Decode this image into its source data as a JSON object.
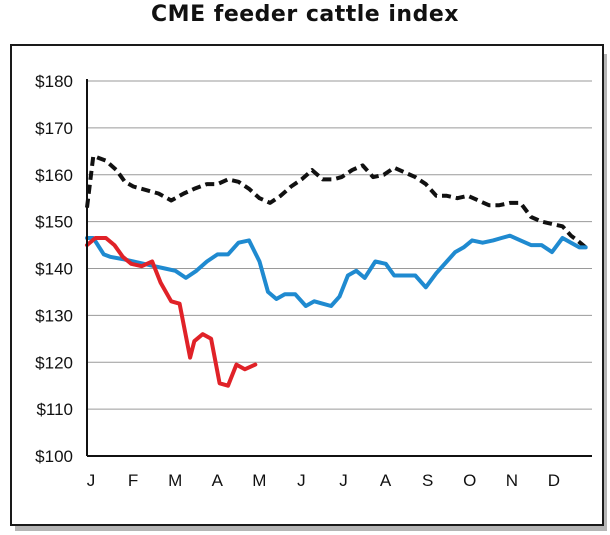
{
  "chart_data": {
    "type": "line",
    "title": "CME feeder cattle index",
    "xlabel": "",
    "ylabel": "",
    "categories": [
      "J",
      "F",
      "M",
      "A",
      "M",
      "J",
      "J",
      "A",
      "S",
      "O",
      "N",
      "D"
    ],
    "yticks": [
      "$100",
      "$110",
      "$120",
      "$130",
      "$140",
      "$150",
      "$160",
      "$170",
      "$180"
    ],
    "ylim": [
      100,
      180
    ],
    "xlim": [
      0,
      12
    ],
    "grid": "horizontal",
    "series": [
      {
        "color": "#111111",
        "style": "dashed",
        "x": [
          0.0,
          0.15,
          0.45,
          0.7,
          0.9,
          1.1,
          1.3,
          1.5,
          1.7,
          2.0,
          2.3,
          2.55,
          2.85,
          3.1,
          3.35,
          3.6,
          3.85,
          4.1,
          4.35,
          4.6,
          4.85,
          5.1,
          5.35,
          5.6,
          5.85,
          6.05,
          6.3,
          6.55,
          6.8,
          7.05,
          7.3,
          7.55,
          7.8,
          8.05,
          8.3,
          8.55,
          8.8,
          9.05,
          9.3,
          9.55,
          9.8,
          10.05,
          10.3,
          10.55,
          10.8,
          11.05,
          11.3,
          11.5,
          11.65,
          11.85
        ],
        "values": [
          153,
          164,
          163,
          161,
          158.5,
          157.5,
          157,
          156.5,
          156,
          154.5,
          156,
          157,
          158,
          158,
          159,
          158.5,
          157,
          155,
          154,
          155.5,
          157.5,
          159,
          161,
          159,
          159,
          159.5,
          161,
          162,
          159.5,
          160,
          161.5,
          160.5,
          159.5,
          158,
          155.5,
          155.5,
          155,
          155.5,
          154.5,
          153.5,
          153.5,
          154,
          154,
          151,
          150,
          149.5,
          149,
          147,
          146,
          144.5
        ]
      },
      {
        "color": "#1f8ad0",
        "style": "solid",
        "x": [
          0.0,
          0.15,
          0.4,
          0.55,
          0.85,
          1.1,
          1.35,
          1.6,
          1.85,
          2.1,
          2.35,
          2.6,
          2.85,
          3.1,
          3.35,
          3.6,
          3.85,
          4.1,
          4.3,
          4.5,
          4.7,
          4.95,
          5.2,
          5.4,
          5.6,
          5.8,
          6.0,
          6.2,
          6.4,
          6.6,
          6.85,
          7.1,
          7.3,
          7.55,
          7.8,
          8.05,
          8.3,
          8.55,
          8.75,
          8.95,
          9.15,
          9.4,
          9.65,
          9.85,
          10.05,
          10.3,
          10.55,
          10.8,
          11.05,
          11.3,
          11.5,
          11.7,
          11.85
        ],
        "values": [
          146.5,
          146.5,
          143,
          142.5,
          142,
          141.5,
          141,
          140.5,
          140,
          139.5,
          138,
          139.5,
          141.5,
          143,
          143,
          145.5,
          146,
          141.5,
          135,
          133.5,
          134.5,
          134.5,
          132,
          133,
          132.5,
          132,
          134,
          138.5,
          139.5,
          138,
          141.5,
          141,
          138.5,
          138.5,
          138.5,
          136,
          139,
          141.5,
          143.5,
          144.5,
          146,
          145.5,
          146,
          146.5,
          147,
          146,
          145,
          145,
          143.5,
          146.5,
          145.5,
          144.5,
          144.5
        ]
      },
      {
        "color": "#e02228",
        "style": "solid",
        "x": [
          0.0,
          0.2,
          0.45,
          0.65,
          0.85,
          1.05,
          1.3,
          1.55,
          1.75,
          2.0,
          2.2,
          2.45,
          2.55,
          2.75,
          2.95,
          3.15,
          3.35,
          3.55,
          3.75,
          4.0
        ],
        "values": [
          145,
          146.5,
          146.5,
          145,
          142.5,
          141,
          140.5,
          141.5,
          137,
          133,
          132.5,
          121,
          124.5,
          126,
          125,
          115.5,
          115,
          119.5,
          118.5,
          119.5
        ]
      }
    ]
  }
}
